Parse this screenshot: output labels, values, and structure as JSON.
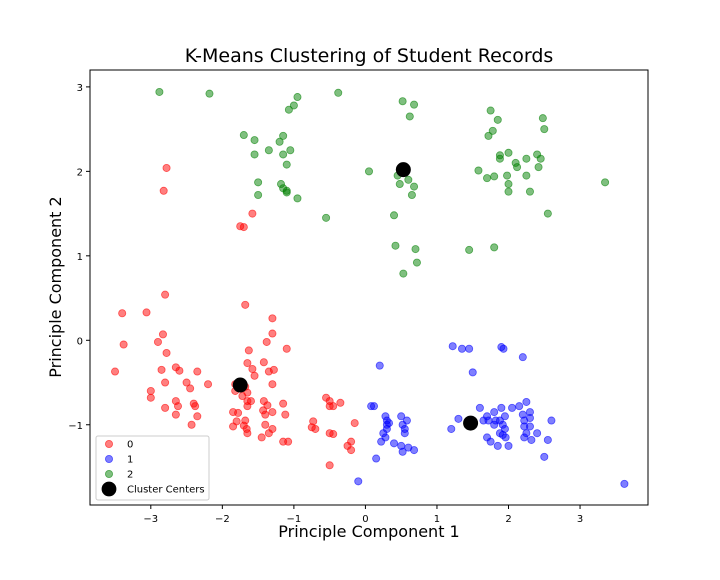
{
  "chart_data": {
    "type": "scatter",
    "title": "K-Means Clustering of Student Records",
    "xlabel": "Principle Component 1",
    "ylabel": "Principle Component 2",
    "xlim": [
      -3.85,
      3.95
    ],
    "ylim": [
      -1.95,
      3.2
    ],
    "xticks": [
      -3,
      -2,
      -1,
      0,
      1,
      2,
      3
    ],
    "yticks": [
      -1,
      0,
      1,
      2,
      3
    ],
    "grid": false,
    "legend_position": "lower-left",
    "series": [
      {
        "name": "0",
        "color": "#ff0000",
        "points": [
          [
            -3.4,
            0.32
          ],
          [
            -3.5,
            -0.37
          ],
          [
            -3.38,
            -0.05
          ],
          [
            -3.06,
            0.33
          ],
          [
            -2.9,
            -0.02
          ],
          [
            -2.83,
            0.07
          ],
          [
            -2.8,
            0.54
          ],
          [
            -2.78,
            -0.15
          ],
          [
            -2.85,
            -0.35
          ],
          [
            -2.8,
            -0.5
          ],
          [
            -2.65,
            -0.32
          ],
          [
            -2.6,
            -0.36
          ],
          [
            -2.5,
            -0.5
          ],
          [
            -2.45,
            -0.57
          ],
          [
            -2.35,
            -0.37
          ],
          [
            -2.4,
            -0.75
          ],
          [
            -2.38,
            -0.78
          ],
          [
            -2.35,
            -0.9
          ],
          [
            -2.43,
            -1.0
          ],
          [
            -2.65,
            -0.72
          ],
          [
            -2.62,
            -0.78
          ],
          [
            -2.65,
            -0.88
          ],
          [
            -2.8,
            -0.8
          ],
          [
            -3.0,
            -0.6
          ],
          [
            -3.0,
            -0.68
          ],
          [
            -2.2,
            -0.52
          ],
          [
            -1.68,
            0.42
          ],
          [
            -1.3,
            0.26
          ],
          [
            -1.3,
            0.08
          ],
          [
            -1.1,
            -0.1
          ],
          [
            -1.38,
            -0.02
          ],
          [
            -1.63,
            -0.12
          ],
          [
            -1.65,
            -0.27
          ],
          [
            -1.58,
            -0.34
          ],
          [
            -1.55,
            -0.42
          ],
          [
            -1.82,
            -0.52
          ],
          [
            -1.68,
            -0.55
          ],
          [
            -1.65,
            -0.62
          ],
          [
            -1.72,
            -0.66
          ],
          [
            -1.65,
            -0.72
          ],
          [
            -1.6,
            -0.72
          ],
          [
            -1.65,
            -0.78
          ],
          [
            -1.82,
            -0.6
          ],
          [
            -1.85,
            -0.85
          ],
          [
            -1.78,
            -0.86
          ],
          [
            -1.8,
            -0.96
          ],
          [
            -1.85,
            -1.02
          ],
          [
            -1.68,
            -0.95
          ],
          [
            -1.7,
            -1.01
          ],
          [
            -1.66,
            -1.05
          ],
          [
            -1.65,
            -1.1
          ],
          [
            -1.42,
            -0.72
          ],
          [
            -1.43,
            -0.83
          ],
          [
            -1.37,
            -0.77
          ],
          [
            -1.4,
            -0.88
          ],
          [
            -1.3,
            -0.85
          ],
          [
            -1.4,
            -1.0
          ],
          [
            -1.35,
            -1.1
          ],
          [
            -1.3,
            -1.05
          ],
          [
            -1.45,
            -1.15
          ],
          [
            -1.3,
            -0.52
          ],
          [
            -1.35,
            -0.37
          ],
          [
            -1.42,
            -0.26
          ],
          [
            -1.28,
            -0.35
          ],
          [
            -1.15,
            -0.75
          ],
          [
            -1.12,
            -0.88
          ],
          [
            -1.15,
            -1.2
          ],
          [
            -1.08,
            -1.2
          ],
          [
            -0.75,
            -1.03
          ],
          [
            -0.7,
            -1.05
          ],
          [
            -0.73,
            -0.96
          ],
          [
            -0.55,
            -0.68
          ],
          [
            -0.5,
            -0.72
          ],
          [
            -0.5,
            -0.78
          ],
          [
            -0.45,
            -0.78
          ],
          [
            -0.5,
            -1.1
          ],
          [
            -0.45,
            -1.11
          ],
          [
            -0.35,
            -0.74
          ],
          [
            -0.25,
            -1.25
          ],
          [
            -0.2,
            -1.2
          ],
          [
            -0.2,
            -1.3
          ],
          [
            -0.15,
            -0.98
          ],
          [
            -0.5,
            -1.48
          ],
          [
            -1.58,
            1.5
          ],
          [
            -1.75,
            1.35
          ],
          [
            -1.7,
            1.34
          ],
          [
            -2.78,
            2.04
          ],
          [
            -2.82,
            1.77
          ]
        ]
      },
      {
        "name": "1",
        "color": "#0000ff",
        "points": [
          [
            -0.1,
            -1.67
          ],
          [
            0.08,
            -0.78
          ],
          [
            0.12,
            -0.78
          ],
          [
            0.15,
            -1.4
          ],
          [
            0.2,
            -0.3
          ],
          [
            0.25,
            -1.1
          ],
          [
            0.22,
            -1.2
          ],
          [
            0.28,
            -0.9
          ],
          [
            0.3,
            -1.0
          ],
          [
            0.3,
            -1.05
          ],
          [
            0.3,
            -0.95
          ],
          [
            0.33,
            -0.98
          ],
          [
            0.28,
            -1.15
          ],
          [
            0.5,
            -0.9
          ],
          [
            0.52,
            -1.0
          ],
          [
            0.55,
            -1.05
          ],
          [
            0.55,
            -1.1
          ],
          [
            0.58,
            -0.95
          ],
          [
            0.5,
            -1.25
          ],
          [
            0.52,
            -1.32
          ],
          [
            0.6,
            -1.27
          ],
          [
            0.68,
            -1.3
          ],
          [
            0.4,
            -1.22
          ],
          [
            1.2,
            -1.05
          ],
          [
            1.22,
            -0.07
          ],
          [
            1.35,
            -0.1
          ],
          [
            1.3,
            -0.93
          ],
          [
            1.5,
            -0.38
          ],
          [
            1.45,
            -0.1
          ],
          [
            1.6,
            -0.8
          ],
          [
            1.65,
            -0.95
          ],
          [
            1.7,
            -0.9
          ],
          [
            1.7,
            -1.15
          ],
          [
            1.72,
            -0.95
          ],
          [
            1.75,
            -1.2
          ],
          [
            1.8,
            -0.85
          ],
          [
            1.82,
            -0.95
          ],
          [
            1.85,
            -1.25
          ],
          [
            1.8,
            -1.0
          ],
          [
            1.88,
            -0.95
          ],
          [
            1.88,
            -1.1
          ],
          [
            1.9,
            -0.08
          ],
          [
            1.93,
            -0.1
          ],
          [
            1.9,
            -0.8
          ],
          [
            1.95,
            -0.9
          ],
          [
            1.92,
            -1.0
          ],
          [
            1.95,
            -1.05
          ],
          [
            1.92,
            -1.12
          ],
          [
            1.96,
            -1.15
          ],
          [
            2.0,
            -1.25
          ],
          [
            2.05,
            -0.8
          ],
          [
            2.15,
            -0.78
          ],
          [
            2.2,
            -0.88
          ],
          [
            2.22,
            -0.95
          ],
          [
            2.22,
            -1.02
          ],
          [
            2.25,
            -1.1
          ],
          [
            2.22,
            -1.15
          ],
          [
            2.3,
            -0.85
          ],
          [
            2.25,
            -0.73
          ],
          [
            2.3,
            -0.92
          ],
          [
            2.3,
            -1.02
          ],
          [
            2.32,
            -1.18
          ],
          [
            2.2,
            -0.2
          ],
          [
            2.4,
            -1.1
          ],
          [
            2.5,
            -1.38
          ],
          [
            2.55,
            -1.18
          ],
          [
            2.6,
            -0.95
          ],
          [
            3.62,
            -1.7
          ]
        ]
      },
      {
        "name": "2",
        "color": "#008000",
        "points": [
          [
            -2.88,
            2.94
          ],
          [
            -2.18,
            2.92
          ],
          [
            -0.38,
            2.93
          ],
          [
            -0.95,
            2.88
          ],
          [
            -1.07,
            2.73
          ],
          [
            -1.0,
            2.78
          ],
          [
            -1.7,
            2.43
          ],
          [
            -1.55,
            2.37
          ],
          [
            -1.2,
            2.35
          ],
          [
            -1.15,
            2.42
          ],
          [
            -1.05,
            2.25
          ],
          [
            -1.15,
            2.2
          ],
          [
            -1.1,
            2.08
          ],
          [
            -1.55,
            2.2
          ],
          [
            -1.5,
            1.87
          ],
          [
            -1.5,
            1.72
          ],
          [
            -1.18,
            1.85
          ],
          [
            -1.15,
            1.8
          ],
          [
            -1.1,
            1.77
          ],
          [
            -1.1,
            1.75
          ],
          [
            -1.35,
            2.25
          ],
          [
            -0.95,
            1.68
          ],
          [
            -0.55,
            1.45
          ],
          [
            0.05,
            2.0
          ],
          [
            0.4,
            1.48
          ],
          [
            0.52,
            2.83
          ],
          [
            0.68,
            2.79
          ],
          [
            0.62,
            2.65
          ],
          [
            0.45,
            1.95
          ],
          [
            0.48,
            1.85
          ],
          [
            0.6,
            1.9
          ],
          [
            0.65,
            1.72
          ],
          [
            0.68,
            1.82
          ],
          [
            0.42,
            1.12
          ],
          [
            0.7,
            1.08
          ],
          [
            0.72,
            0.92
          ],
          [
            0.53,
            0.79
          ],
          [
            1.45,
            1.07
          ],
          [
            1.58,
            2.01
          ],
          [
            1.72,
            2.42
          ],
          [
            1.75,
            2.72
          ],
          [
            1.85,
            2.61
          ],
          [
            1.7,
            1.92
          ],
          [
            1.8,
            1.94
          ],
          [
            1.78,
            2.48
          ],
          [
            1.88,
            2.19
          ],
          [
            1.88,
            2.15
          ],
          [
            2.0,
            2.22
          ],
          [
            1.98,
            1.95
          ],
          [
            2.0,
            1.85
          ],
          [
            2.0,
            1.76
          ],
          [
            2.1,
            2.1
          ],
          [
            2.12,
            2.05
          ],
          [
            2.25,
            2.15
          ],
          [
            2.3,
            1.76
          ],
          [
            2.25,
            1.95
          ],
          [
            2.4,
            2.2
          ],
          [
            2.42,
            2.05
          ],
          [
            2.45,
            2.15
          ],
          [
            2.48,
            2.63
          ],
          [
            2.5,
            2.5
          ],
          [
            2.55,
            1.5
          ],
          [
            1.8,
            1.1
          ],
          [
            3.35,
            1.87
          ]
        ]
      }
    ],
    "centers": {
      "name": "Cluster Centers",
      "color": "#000000",
      "points": [
        [
          -1.75,
          -0.53
        ],
        [
          0.53,
          2.02
        ],
        [
          1.47,
          -0.98
        ]
      ]
    }
  }
}
